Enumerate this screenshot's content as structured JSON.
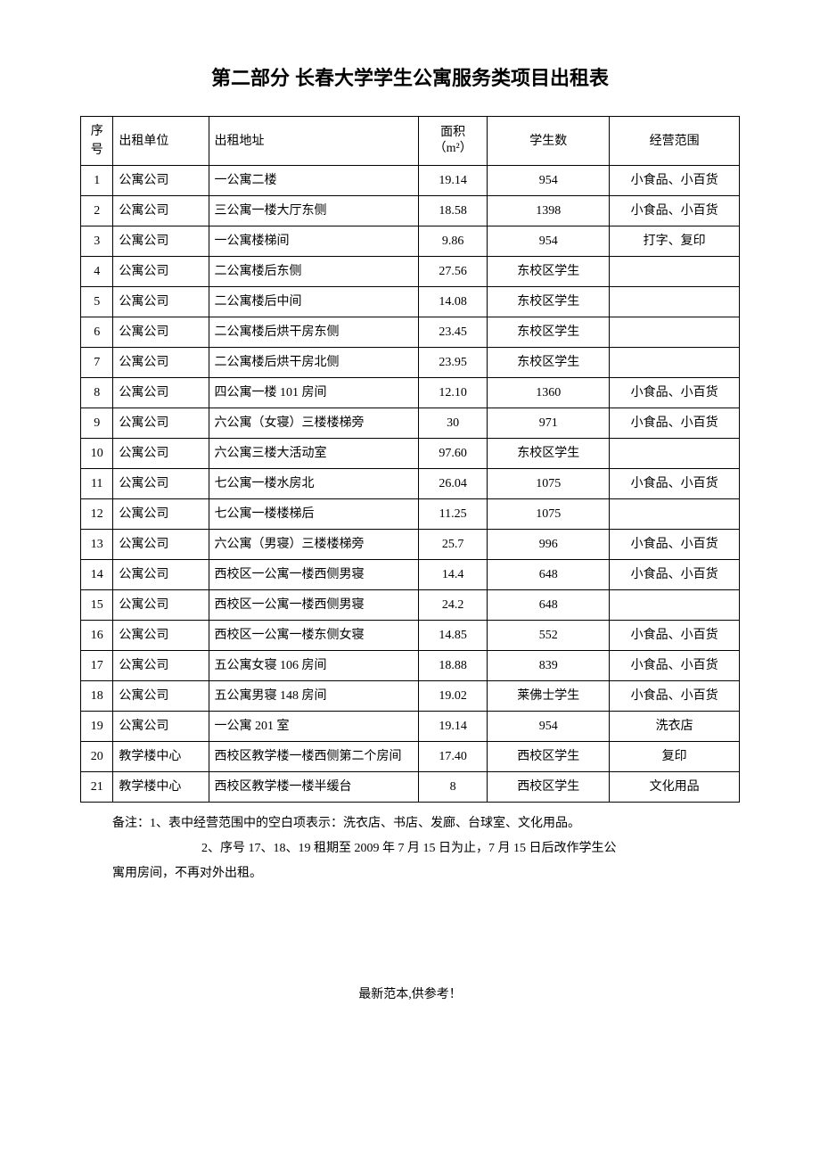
{
  "title": "第二部分 长春大学学生公寓服务类项目出租表",
  "columns": {
    "seq": "序号",
    "unit": "出租单位",
    "addr": "出租地址",
    "area_line1": "面积",
    "area_line2": "（m²）",
    "students": "学生数",
    "scope": "经营范围"
  },
  "rows": [
    {
      "seq": "1",
      "unit": "公寓公司",
      "addr": "一公寓二楼",
      "area": "19.14",
      "students": "954",
      "scope": "小食品、小百货"
    },
    {
      "seq": "2",
      "unit": "公寓公司",
      "addr": "三公寓一楼大厅东侧",
      "area": "18.58",
      "students": "1398",
      "scope": "小食品、小百货"
    },
    {
      "seq": "3",
      "unit": "公寓公司",
      "addr": "一公寓楼梯间",
      "area": "9.86",
      "students": "954",
      "scope": "打字、复印"
    },
    {
      "seq": "4",
      "unit": "公寓公司",
      "addr": "二公寓楼后东侧",
      "area": "27.56",
      "students": "东校区学生",
      "scope": ""
    },
    {
      "seq": "5",
      "unit": "公寓公司",
      "addr": "二公寓楼后中间",
      "area": "14.08",
      "students": "东校区学生",
      "scope": ""
    },
    {
      "seq": "6",
      "unit": "公寓公司",
      "addr": "二公寓楼后烘干房东侧",
      "area": "23.45",
      "students": "东校区学生",
      "scope": ""
    },
    {
      "seq": "7",
      "unit": "公寓公司",
      "addr": "二公寓楼后烘干房北侧",
      "area": "23.95",
      "students": "东校区学生",
      "scope": ""
    },
    {
      "seq": "8",
      "unit": "公寓公司",
      "addr": "四公寓一楼 101 房间",
      "area": "12.10",
      "students": "1360",
      "scope": "小食品、小百货"
    },
    {
      "seq": "9",
      "unit": "公寓公司",
      "addr": "六公寓（女寝）三楼楼梯旁",
      "area": "30",
      "students": "971",
      "scope": "小食品、小百货"
    },
    {
      "seq": "10",
      "unit": "公寓公司",
      "addr": "六公寓三楼大活动室",
      "area": "97.60",
      "students": "东校区学生",
      "scope": ""
    },
    {
      "seq": "11",
      "unit": "公寓公司",
      "addr": "七公寓一楼水房北",
      "area": "26.04",
      "students": "1075",
      "scope": "小食品、小百货"
    },
    {
      "seq": "12",
      "unit": "公寓公司",
      "addr": "七公寓一楼楼梯后",
      "area": "11.25",
      "students": "1075",
      "scope": ""
    },
    {
      "seq": "13",
      "unit": "公寓公司",
      "addr": "六公寓（男寝）三楼楼梯旁",
      "area": "25.7",
      "students": "996",
      "scope": "小食品、小百货"
    },
    {
      "seq": "14",
      "unit": "公寓公司",
      "addr": "西校区一公寓一楼西侧男寝",
      "area": "14.4",
      "students": "648",
      "scope": "小食品、小百货"
    },
    {
      "seq": "15",
      "unit": "公寓公司",
      "addr": "西校区一公寓一楼西侧男寝",
      "area": "24.2",
      "students": "648",
      "scope": ""
    },
    {
      "seq": "16",
      "unit": "公寓公司",
      "addr": "西校区一公寓一楼东侧女寝",
      "area": "14.85",
      "students": "552",
      "scope": "小食品、小百货"
    },
    {
      "seq": "17",
      "unit": "公寓公司",
      "addr": "五公寓女寝 106 房间",
      "area": "18.88",
      "students": "839",
      "scope": "小食品、小百货"
    },
    {
      "seq": "18",
      "unit": "公寓公司",
      "addr": "五公寓男寝 148 房间",
      "area": "19.02",
      "students": "莱佛士学生",
      "scope": "小食品、小百货"
    },
    {
      "seq": "19",
      "unit": "公寓公司",
      "addr": "一公寓 201 室",
      "area": "19.14",
      "students": "954",
      "scope": "洗衣店"
    },
    {
      "seq": "20",
      "unit": "教学楼中心",
      "addr": "西校区教学楼一楼西侧第二个房间",
      "area": "17.40",
      "students": "西校区学生",
      "scope": "复印"
    },
    {
      "seq": "21",
      "unit": "教学楼中心",
      "addr": "西校区教学楼一楼半缓台",
      "area": "8",
      "students": "西校区学生",
      "scope": "文化用品"
    }
  ],
  "notes": {
    "line1": "备注：1、表中经营范围中的空白项表示：洗衣店、书店、发廊、台球室、文化用品。",
    "line2a": "2、序号 17、18、19 租期至 2009 年 7 月 15 日为止，7 月 15 日后改作学生公",
    "line2b": "寓用房间，不再对外出租。"
  },
  "footer": "最新范本,供参考！"
}
